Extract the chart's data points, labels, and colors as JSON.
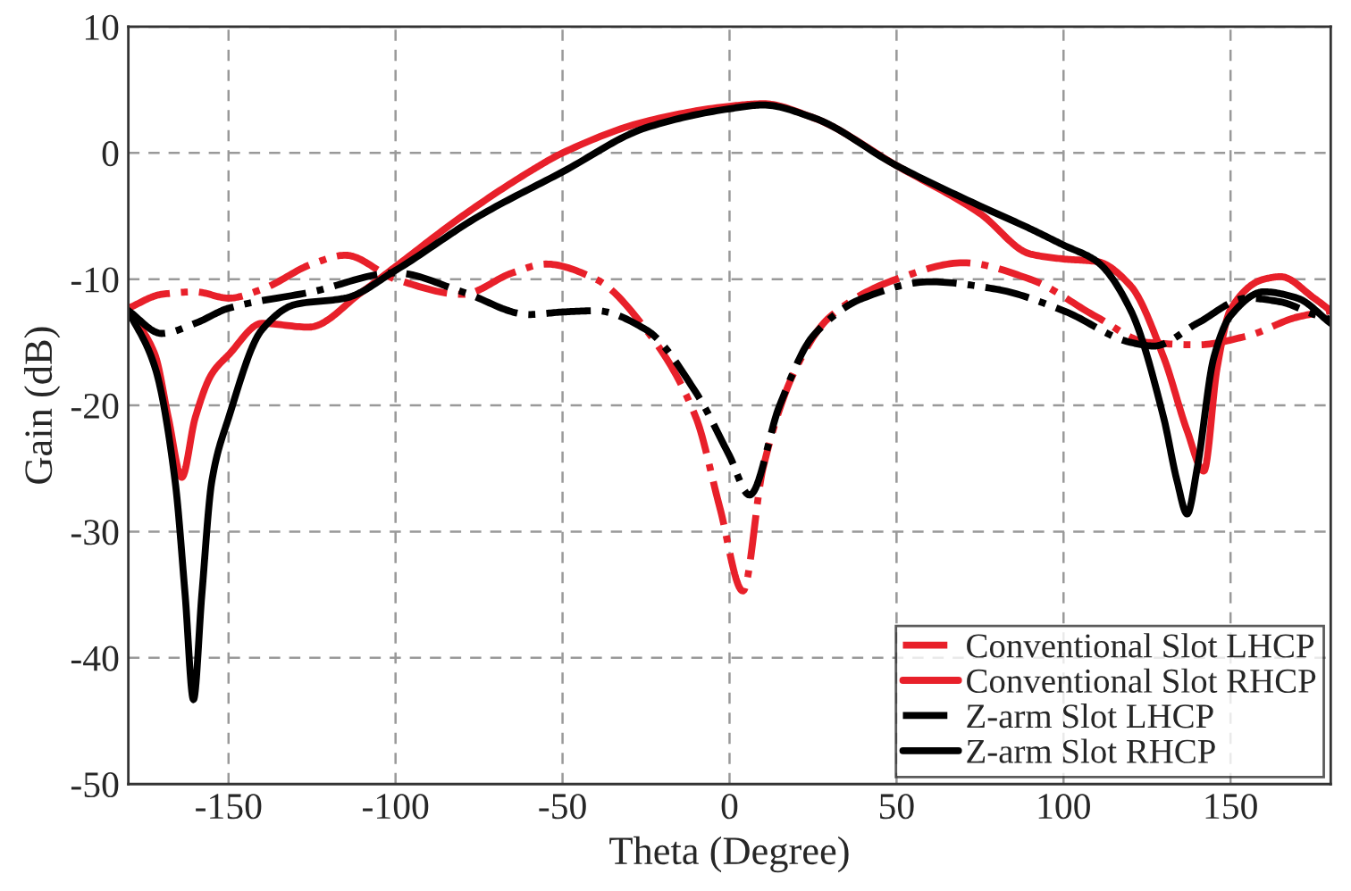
{
  "chart_data": {
    "type": "line",
    "xlabel": "Theta (Degree)",
    "ylabel": "Gain (dB)",
    "xlim": [
      -180,
      180
    ],
    "ylim": [
      -50,
      10
    ],
    "xticks": [
      -150,
      -100,
      -50,
      0,
      50,
      100,
      150
    ],
    "yticks": [
      -50,
      -40,
      -30,
      -20,
      -10,
      0,
      10
    ],
    "grid": true,
    "legend": "bottom right",
    "series": [
      {
        "name": "Conventional Slot LHCP",
        "color": "#e8202a",
        "line_style": "dashdot",
        "x": [
          -180,
          -170,
          -160,
          -150,
          -140,
          -125,
          -115,
          -100,
          -80,
          -65,
          -55,
          -40,
          -25,
          -10,
          -3,
          4,
          10,
          20,
          30,
          50,
          70,
          90,
          110,
          125,
          140,
          155,
          170,
          180
        ],
        "values": [
          -12.3,
          -11.2,
          -11,
          -11.5,
          -10.8,
          -8.8,
          -8.1,
          -10,
          -11.2,
          -9.5,
          -8.8,
          -10,
          -14,
          -21,
          -28,
          -34.7,
          -25,
          -17,
          -13,
          -10,
          -8.7,
          -10,
          -13,
          -15,
          -15.2,
          -14.5,
          -13,
          -12.5
        ]
      },
      {
        "name": "Conventional Slot RHCP",
        "color": "#e8202a",
        "line_style": "solid",
        "x": [
          -180,
          -172,
          -168,
          -164,
          -160,
          -155,
          -150,
          -140,
          -126,
          -110,
          -100,
          -80,
          -60,
          -50,
          -25,
          0,
          10,
          25,
          50,
          75,
          90,
          100,
          110,
          120,
          130,
          137,
          142,
          146,
          150,
          160,
          165,
          175,
          180
        ],
        "values": [
          -12.5,
          -16,
          -21,
          -25.7,
          -21,
          -17.5,
          -16,
          -13.5,
          -13.8,
          -11,
          -9,
          -5,
          -1.5,
          0,
          2.5,
          3.7,
          3.9,
          2.8,
          -1,
          -4.8,
          -8,
          -8.4,
          -8.6,
          -10.5,
          -16.2,
          -22,
          -25.2,
          -17,
          -12.4,
          -10,
          -9.8,
          -11.5,
          -12.5
        ]
      },
      {
        "name": "Z-arm Slot LHCP",
        "color": "#000000",
        "line_style": "dashdot",
        "x": [
          -180,
          -170,
          -160,
          -150,
          -125,
          -100,
          -80,
          -60,
          -50,
          -40,
          -25,
          -10,
          0,
          6,
          15,
          25,
          40,
          60,
          80,
          100,
          120,
          127,
          140,
          155,
          165,
          175,
          180
        ],
        "values": [
          -12.5,
          -14.3,
          -13.5,
          -12.3,
          -11,
          -9.5,
          -11,
          -12.8,
          -12.6,
          -12.5,
          -14,
          -19,
          -24,
          -27.1,
          -20,
          -14.5,
          -11.5,
          -10.2,
          -10.8,
          -12.5,
          -15,
          -15.3,
          -13.5,
          -11.5,
          -11.8,
          -12.8,
          -13.2
        ]
      },
      {
        "name": "Z-arm Slot RHCP",
        "color": "#000000",
        "line_style": "solid",
        "x": [
          -180,
          -172,
          -166,
          -163,
          -160.5,
          -158,
          -155,
          -150,
          -140,
          -130,
          -115,
          -100,
          -75,
          -50,
          -25,
          0,
          10,
          25,
          50,
          75,
          90,
          100,
          110,
          120,
          130,
          134,
          137,
          140,
          145,
          150,
          160,
          170,
          180
        ],
        "values": [
          -12.5,
          -17,
          -26,
          -35,
          -43.3,
          -35,
          -26,
          -21,
          -14,
          -12,
          -11.5,
          -9.3,
          -5,
          -1.5,
          2,
          3.5,
          3.8,
          2.8,
          -1,
          -4.2,
          -6,
          -7.3,
          -8.6,
          -12.4,
          -21,
          -26,
          -28.6,
          -25,
          -16.2,
          -12.9,
          -11,
          -11.5,
          -13.5
        ]
      }
    ]
  }
}
